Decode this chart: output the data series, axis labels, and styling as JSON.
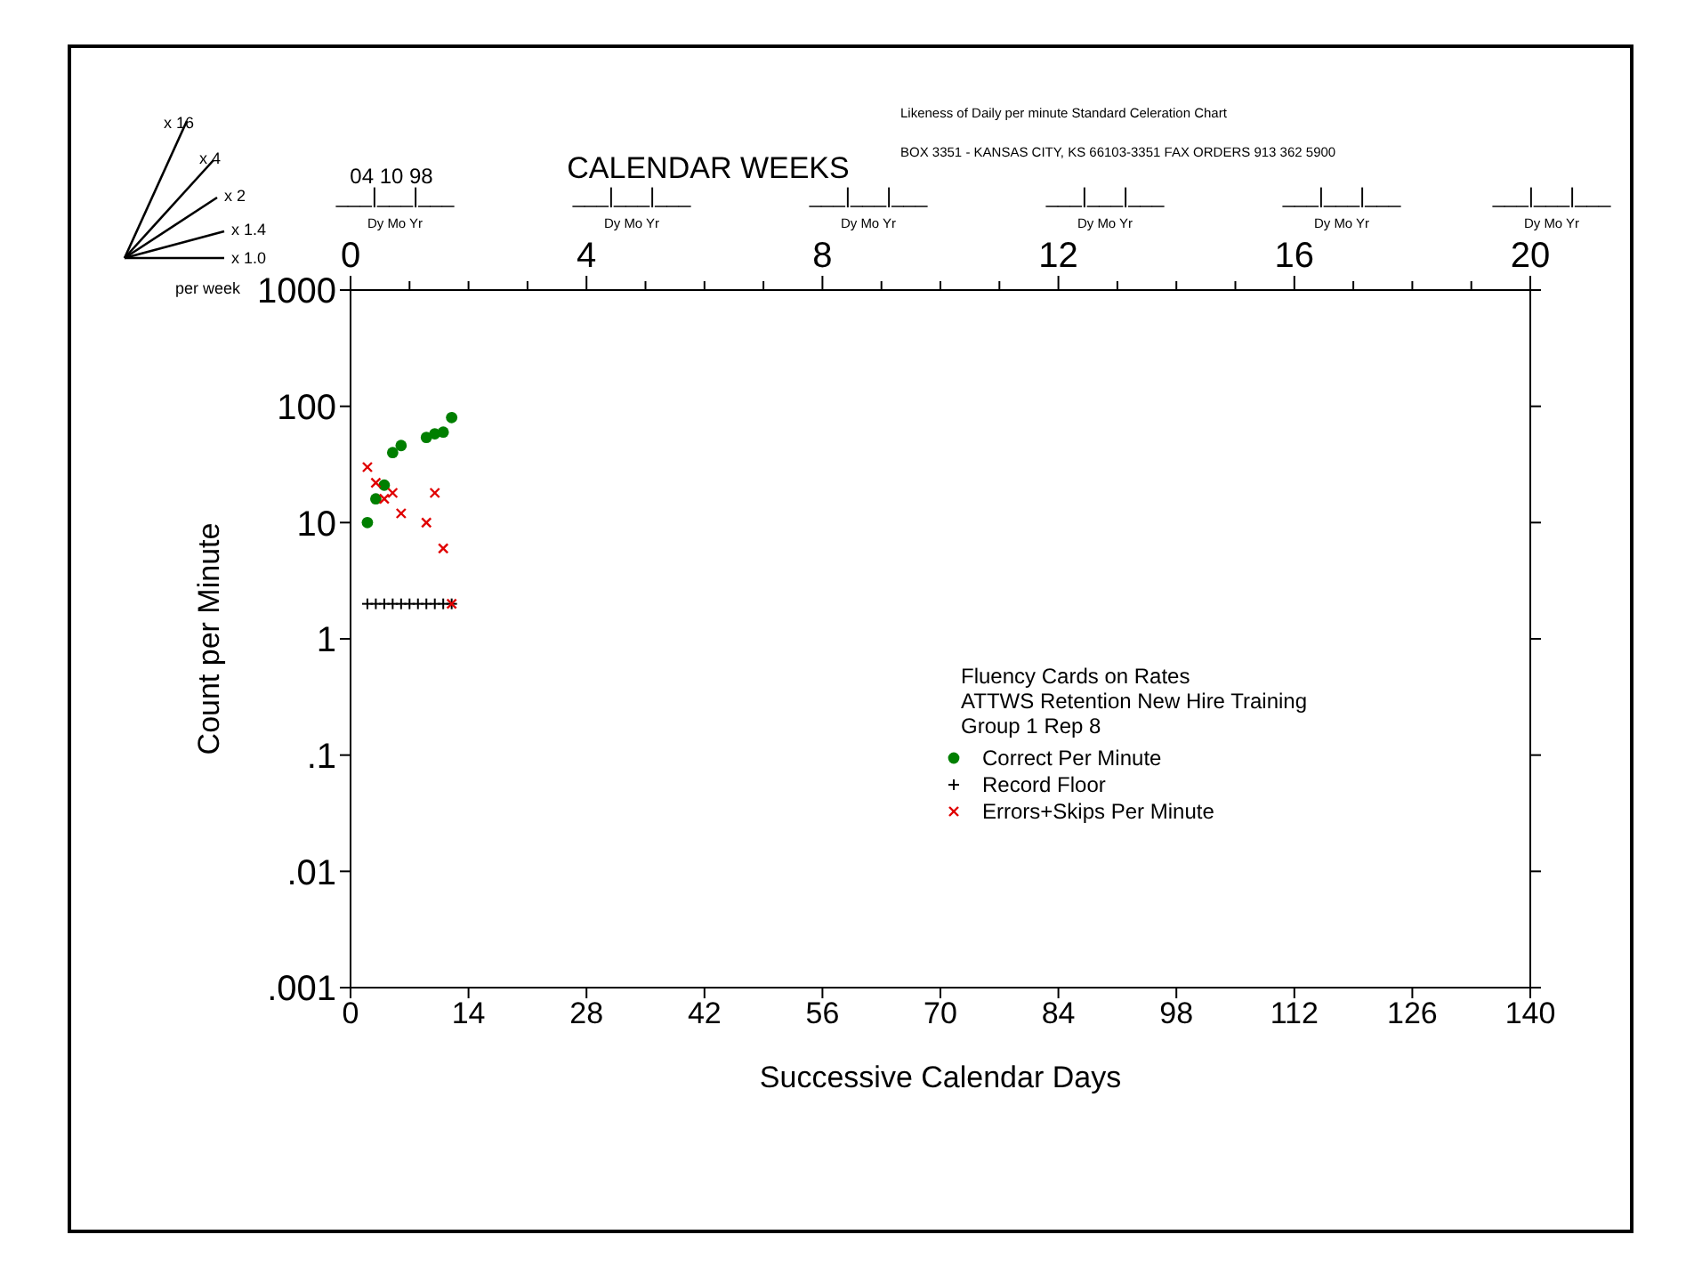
{
  "chart_data": {
    "type": "scatter",
    "x2label": "CALENDAR WEEKS",
    "xlabel": "Successive Calendar Days",
    "ylabel": "Count per Minute",
    "annotations": [
      "Likeness of  Daily  per minute Standard Celeration Chart",
      "BOX 3351 - KANSAS CITY, KS 66103-3351   FAX  ORDERS 913 362 5900",
      "04 10 98",
      "___|___|___",
      "___|___|___",
      "___|___|___",
      "___|___|___",
      "___|___|___",
      "___|___|___",
      "Dy Mo Yr",
      "Dy Mo Yr",
      "Dy Mo Yr",
      "Dy Mo Yr",
      "Dy Mo Yr",
      "Dy Mo Yr",
      "x 16",
      "x 4",
      "x 2",
      "x 1.4",
      "x 1.0",
      "per week",
      "Fluency Cards on Rates",
      "ATTWS Retention New Hire Training",
      "Group 1  Rep 8"
    ],
    "xlim": [
      0,
      140
    ],
    "xticks": [
      0,
      14,
      28,
      42,
      56,
      70,
      84,
      98,
      112,
      126,
      140
    ],
    "x2lim": [
      0,
      20
    ],
    "x2ticks": [
      0,
      {
        "value": 1,
        "label": null
      },
      {
        "value": 2,
        "label": null
      },
      {
        "value": 3,
        "label": null
      },
      4,
      {
        "value": 5,
        "label": null
      },
      {
        "value": 6,
        "label": null
      },
      {
        "value": 7,
        "label": null
      },
      8,
      {
        "value": 9,
        "label": null
      },
      {
        "value": 10,
        "label": null
      },
      {
        "value": 11,
        "label": null
      },
      12,
      {
        "value": 13,
        "label": null
      },
      {
        "value": 14,
        "label": null
      },
      {
        "value": 15,
        "label": null
      },
      16,
      {
        "value": 17,
        "label": null
      },
      {
        "value": 18,
        "label": null
      },
      {
        "value": 19,
        "label": null
      },
      20
    ],
    "ylim": [
      0.001,
      1000
    ],
    "yticks": [
      {
        "value": 0.001,
        "label": ".001"
      },
      {
        "value": 0.01,
        "label": ".01"
      },
      {
        "value": 0.1,
        "label": ".1"
      },
      1,
      10,
      100,
      1000
    ],
    "log": "y",
    "legend": "right",
    "series": [
      {
        "name": "Correct Per Minute",
        "color": "#007f00",
        "marker": "circle",
        "x": [
          2,
          3,
          4,
          5,
          6,
          9,
          10,
          11,
          12
        ],
        "values": [
          10,
          16,
          21,
          40,
          46,
          54,
          58,
          60,
          80
        ]
      },
      {
        "name": "Record Floor",
        "color": "#000000",
        "marker": "plus",
        "x": [
          2,
          3,
          4,
          5,
          6,
          7,
          8,
          9,
          10,
          11,
          12
        ],
        "values": [
          2,
          2,
          2,
          2,
          2,
          2,
          2,
          2,
          2,
          2,
          2
        ]
      },
      {
        "name": "Errors+Skips Per Minute",
        "color": "#e00000",
        "marker": "cross",
        "x": [
          2,
          3,
          4,
          5,
          6,
          9,
          10,
          11,
          12
        ],
        "values": [
          30,
          22,
          16,
          18,
          12,
          10,
          18,
          6,
          2
        ]
      }
    ]
  }
}
